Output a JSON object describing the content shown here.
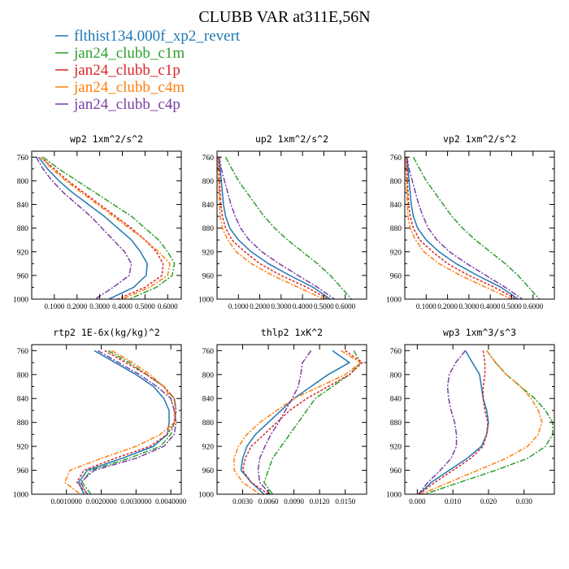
{
  "title": "CLUBB VAR at311E,56N",
  "legend": [
    {
      "name": "flthist134.000f_xp2_revert",
      "color": "#1f77b4"
    },
    {
      "name": "jan24_clubb_c1m",
      "color": "#2ca02c"
    },
    {
      "name": "jan24_clubb_c1p",
      "color": "#d62728"
    },
    {
      "name": "jan24_clubb_c4m",
      "color": "#ff7f0e"
    },
    {
      "name": "jan24_clubb_c4p",
      "color": "#7b3fa6"
    }
  ],
  "chart_data": [
    {
      "type": "line",
      "title": "wp2  1xm^2/s^2",
      "xlim": [
        0.0,
        0.66
      ],
      "ylim": [
        1000,
        750
      ],
      "xticks": [
        0.1,
        0.2,
        0.3,
        0.4,
        0.5,
        0.6
      ],
      "xtick_labels": [
        "0.1000",
        "0.2000",
        "0.3000",
        "0.4000",
        "0.5000",
        "0.6000"
      ],
      "yticks": [
        760,
        800,
        840,
        880,
        920,
        960,
        1000
      ],
      "ytick_labels": [
        "760",
        "800",
        "840",
        "880",
        "920",
        "960",
        "1000"
      ],
      "y": [
        760,
        780,
        800,
        820,
        840,
        860,
        880,
        900,
        920,
        940,
        960,
        980,
        1000
      ],
      "series": [
        {
          "name": "flthist134.000f_xp2_revert",
          "values": [
            0.03,
            0.07,
            0.12,
            0.18,
            0.25,
            0.32,
            0.38,
            0.44,
            0.48,
            0.51,
            0.505,
            0.45,
            0.34
          ]
        },
        {
          "name": "jan24_clubb_c1m",
          "values": [
            0.05,
            0.12,
            0.2,
            0.28,
            0.36,
            0.44,
            0.5,
            0.56,
            0.6,
            0.63,
            0.62,
            0.55,
            0.43
          ]
        },
        {
          "name": "jan24_clubb_c1p",
          "values": [
            0.04,
            0.1,
            0.16,
            0.23,
            0.3,
            0.37,
            0.44,
            0.5,
            0.55,
            0.58,
            0.575,
            0.5,
            0.38
          ]
        },
        {
          "name": "jan24_clubb_c4m",
          "values": [
            0.04,
            0.09,
            0.15,
            0.22,
            0.29,
            0.36,
            0.43,
            0.5,
            0.56,
            0.61,
            0.6,
            0.52,
            0.4
          ]
        },
        {
          "name": "jan24_clubb_c4p",
          "values": [
            0.02,
            0.05,
            0.09,
            0.14,
            0.2,
            0.26,
            0.31,
            0.36,
            0.41,
            0.44,
            0.43,
            0.36,
            0.28
          ]
        }
      ]
    },
    {
      "type": "line",
      "title": "up2  1xm^2/s^2",
      "xlim": [
        0.0,
        0.7
      ],
      "ylim": [
        1000,
        750
      ],
      "xticks": [
        0.1,
        0.2,
        0.3,
        0.4,
        0.5,
        0.6
      ],
      "xtick_labels": [
        "0.1000",
        "0.2000",
        "0.3000",
        "0.4000",
        "0.5000",
        "0.6000"
      ],
      "yticks": [
        760,
        800,
        840,
        880,
        920,
        960,
        1000
      ],
      "ytick_labels": [
        "760",
        "800",
        "840",
        "880",
        "920",
        "960",
        "1000"
      ],
      "y": [
        760,
        780,
        800,
        820,
        840,
        860,
        880,
        900,
        920,
        940,
        960,
        980,
        1000
      ],
      "series": [
        {
          "name": "flthist134.000f_xp2_revert",
          "values": [
            0.01,
            0.015,
            0.02,
            0.025,
            0.03,
            0.04,
            0.06,
            0.1,
            0.16,
            0.24,
            0.34,
            0.45,
            0.53
          ]
        },
        {
          "name": "jan24_clubb_c1m",
          "values": [
            0.04,
            0.07,
            0.1,
            0.14,
            0.18,
            0.22,
            0.27,
            0.33,
            0.4,
            0.47,
            0.53,
            0.58,
            0.63
          ]
        },
        {
          "name": "jan24_clubb_c1p",
          "values": [
            0.005,
            0.01,
            0.012,
            0.015,
            0.018,
            0.025,
            0.04,
            0.07,
            0.13,
            0.2,
            0.3,
            0.42,
            0.52
          ]
        },
        {
          "name": "jan24_clubb_c4m",
          "values": [
            0.003,
            0.005,
            0.007,
            0.01,
            0.012,
            0.015,
            0.025,
            0.05,
            0.09,
            0.16,
            0.26,
            0.38,
            0.5
          ]
        },
        {
          "name": "jan24_clubb_c4p",
          "values": [
            0.01,
            0.02,
            0.035,
            0.05,
            0.065,
            0.085,
            0.11,
            0.15,
            0.21,
            0.29,
            0.38,
            0.47,
            0.55
          ]
        }
      ]
    },
    {
      "type": "line",
      "title": "vp2  1xm^2/s^2",
      "xlim": [
        0.0,
        0.7
      ],
      "ylim": [
        1000,
        750
      ],
      "xticks": [
        0.1,
        0.2,
        0.3,
        0.4,
        0.5,
        0.6
      ],
      "xtick_labels": [
        "0.1000",
        "0.2000",
        "0.3000",
        "0.4000",
        "0.5000",
        "0.6000"
      ],
      "yticks": [
        760,
        800,
        840,
        880,
        920,
        960,
        1000
      ],
      "ytick_labels": [
        "760",
        "800",
        "840",
        "880",
        "920",
        "960",
        "1000"
      ],
      "y": [
        760,
        780,
        800,
        820,
        840,
        860,
        880,
        900,
        920,
        940,
        960,
        980,
        1000
      ],
      "series": [
        {
          "name": "flthist134.000f_xp2_revert",
          "values": [
            0.01,
            0.015,
            0.02,
            0.025,
            0.03,
            0.04,
            0.06,
            0.1,
            0.16,
            0.24,
            0.34,
            0.45,
            0.53
          ]
        },
        {
          "name": "jan24_clubb_c1m",
          "values": [
            0.04,
            0.07,
            0.1,
            0.14,
            0.18,
            0.22,
            0.27,
            0.33,
            0.4,
            0.47,
            0.53,
            0.58,
            0.63
          ]
        },
        {
          "name": "jan24_clubb_c1p",
          "values": [
            0.005,
            0.01,
            0.012,
            0.015,
            0.018,
            0.025,
            0.04,
            0.07,
            0.13,
            0.2,
            0.3,
            0.42,
            0.52
          ]
        },
        {
          "name": "jan24_clubb_c4m",
          "values": [
            0.003,
            0.005,
            0.007,
            0.01,
            0.012,
            0.015,
            0.025,
            0.05,
            0.09,
            0.16,
            0.26,
            0.38,
            0.5
          ]
        },
        {
          "name": "jan24_clubb_c4p",
          "values": [
            0.01,
            0.02,
            0.035,
            0.05,
            0.065,
            0.085,
            0.11,
            0.15,
            0.21,
            0.29,
            0.38,
            0.47,
            0.55
          ]
        }
      ]
    },
    {
      "type": "line",
      "title": "rtp2  1E-6x(kg/kg)^2",
      "xlim": [
        0.0,
        4.3e-05
      ],
      "ylim": [
        1000,
        750
      ],
      "xticks": [
        1e-05,
        2e-05,
        3e-05,
        4e-05
      ],
      "xtick_labels": [
        "0.0010000",
        "0.0020000",
        "0.0030000",
        "0.0040000"
      ],
      "yticks": [
        760,
        800,
        840,
        880,
        920,
        960,
        1000
      ],
      "ytick_labels": [
        "760",
        "800",
        "840",
        "880",
        "920",
        "960",
        "1000"
      ],
      "y": [
        760,
        780,
        800,
        820,
        840,
        860,
        880,
        900,
        920,
        940,
        960,
        980,
        1000
      ],
      "series": [
        {
          "name": "flthist134.000f_xp2_revert",
          "values": [
            1.8e-05,
            2.4e-05,
            3e-05,
            3.5e-05,
            3.8e-05,
            3.95e-05,
            3.95e-05,
            3.9e-05,
            3.5e-05,
            2.6e-05,
            1.6e-05,
            1.35e-05,
            1.5e-05
          ]
        },
        {
          "name": "jan24_clubb_c1m",
          "values": [
            2.2e-05,
            2.8e-05,
            3.3e-05,
            3.8e-05,
            4.1e-05,
            4.15e-05,
            4.1e-05,
            4e-05,
            3.7e-05,
            2.8e-05,
            1.7e-05,
            1.45e-05,
            1.7e-05
          ]
        },
        {
          "name": "jan24_clubb_c1p",
          "values": [
            2.1e-05,
            2.7e-05,
            3.3e-05,
            3.8e-05,
            4.1e-05,
            4.15e-05,
            4.1e-05,
            3.9e-05,
            3.4e-05,
            2.4e-05,
            1.5e-05,
            1.3e-05,
            1.6e-05
          ]
        },
        {
          "name": "jan24_clubb_c4m",
          "values": [
            2.3e-05,
            2.9e-05,
            3.4e-05,
            3.8e-05,
            4e-05,
            4.1e-05,
            4.1e-05,
            3.7e-05,
            3e-05,
            2e-05,
            1.1e-05,
            9.5e-06,
            1.4e-05
          ]
        },
        {
          "name": "jan24_clubb_c4p",
          "values": [
            1.9e-05,
            2.5e-05,
            3.1e-05,
            3.6e-05,
            4e-05,
            4.1e-05,
            4.15e-05,
            4.1e-05,
            3.8e-05,
            3e-05,
            1.8e-05,
            1.4e-05,
            1.6e-05
          ]
        }
      ]
    },
    {
      "type": "line",
      "title": "thlp2  1xK^2",
      "xlim": [
        0.0,
        0.0175
      ],
      "ylim": [
        1000,
        750
      ],
      "xticks": [
        0.003,
        0.006,
        0.009,
        0.012,
        0.015
      ],
      "xtick_labels": [
        "0.0030",
        "0.0060",
        "0.0090",
        "0.0120",
        "0.0150"
      ],
      "yticks": [
        760,
        800,
        840,
        880,
        920,
        960,
        1000
      ],
      "ytick_labels": [
        "760",
        "800",
        "840",
        "880",
        "920",
        "960",
        "1000"
      ],
      "y": [
        760,
        780,
        800,
        820,
        840,
        860,
        880,
        900,
        920,
        940,
        960,
        980,
        1000
      ],
      "series": [
        {
          "name": "flthist134.000f_xp2_revert",
          "values": [
            0.0135,
            0.0155,
            0.013,
            0.011,
            0.009,
            0.0075,
            0.006,
            0.0045,
            0.0035,
            0.003,
            0.0028,
            0.004,
            0.0055
          ]
        },
        {
          "name": "jan24_clubb_c1m",
          "values": [
            0.016,
            0.0168,
            0.0155,
            0.0135,
            0.0115,
            0.0105,
            0.0095,
            0.0085,
            0.0075,
            0.0065,
            0.006,
            0.0055,
            0.0065
          ]
        },
        {
          "name": "jan24_clubb_c1p",
          "values": [
            0.015,
            0.017,
            0.0155,
            0.013,
            0.0105,
            0.0085,
            0.007,
            0.0055,
            0.004,
            0.0033,
            0.003,
            0.004,
            0.006
          ]
        },
        {
          "name": "jan24_clubb_c4m",
          "values": [
            0.0145,
            0.0168,
            0.015,
            0.012,
            0.009,
            0.007,
            0.005,
            0.0035,
            0.0025,
            0.002,
            0.002,
            0.003,
            0.005
          ]
        },
        {
          "name": "jan24_clubb_c4p",
          "values": [
            0.011,
            0.01,
            0.0098,
            0.0095,
            0.0088,
            0.008,
            0.0072,
            0.0063,
            0.0056,
            0.005,
            0.0048,
            0.005,
            0.0062
          ]
        }
      ]
    },
    {
      "type": "line",
      "title": "wp3  1xm^3/s^3",
      "xlim": [
        -0.0035,
        0.0385
      ],
      "ylim": [
        1000,
        750
      ],
      "xticks": [
        0.0,
        0.01,
        0.02,
        0.03
      ],
      "xtick_labels": [
        "0.000",
        "0.010",
        "0.020",
        "0.030"
      ],
      "yticks": [
        760,
        800,
        840,
        880,
        920,
        960,
        1000
      ],
      "ytick_labels": [
        "760",
        "800",
        "840",
        "880",
        "920",
        "960",
        "1000"
      ],
      "y": [
        760,
        780,
        800,
        820,
        840,
        860,
        880,
        900,
        920,
        940,
        960,
        980,
        1000
      ],
      "series": [
        {
          "name": "flthist134.000f_xp2_revert",
          "values": [
            0.0135,
            0.0155,
            0.0175,
            0.018,
            0.0185,
            0.0195,
            0.02,
            0.0195,
            0.018,
            0.014,
            0.009,
            0.004,
            0.0005
          ]
        },
        {
          "name": "jan24_clubb_c1m",
          "values": [
            0.0195,
            0.022,
            0.025,
            0.029,
            0.033,
            0.036,
            0.038,
            0.038,
            0.036,
            0.031,
            0.022,
            0.012,
            0.002
          ]
        },
        {
          "name": "jan24_clubb_c1p",
          "values": [
            0.0185,
            0.019,
            0.019,
            0.0185,
            0.0185,
            0.019,
            0.0198,
            0.0195,
            0.0185,
            0.015,
            0.01,
            0.005,
            0.0005
          ]
        },
        {
          "name": "jan24_clubb_c4m",
          "values": [
            0.0195,
            0.022,
            0.025,
            0.029,
            0.032,
            0.034,
            0.035,
            0.034,
            0.031,
            0.025,
            0.017,
            0.009,
            0.001
          ]
        },
        {
          "name": "jan24_clubb_c4p",
          "values": [
            0.0135,
            0.0108,
            0.009,
            0.0085,
            0.0088,
            0.0095,
            0.0105,
            0.011,
            0.011,
            0.0095,
            0.0065,
            0.003,
            0.0003
          ]
        }
      ]
    }
  ]
}
